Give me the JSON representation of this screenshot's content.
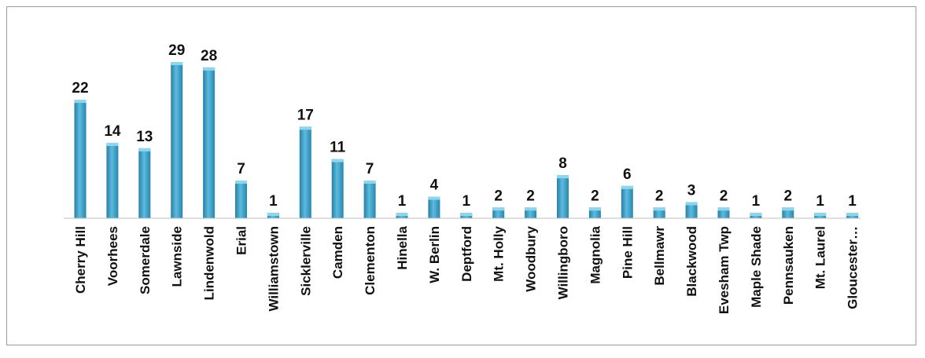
{
  "chart_data": {
    "type": "bar",
    "categories": [
      "Cherry Hill",
      "Voorhees",
      "Somerdale",
      "Lawnside",
      "Lindenwold",
      "Erial",
      "Williamstown",
      "Sicklerville",
      "Camden",
      "Clementon",
      "Hinella",
      "W. Berlin",
      "Deptford",
      "Mt. Holly",
      "Woodbury",
      "Willingboro",
      "Magnolia",
      "Pine Hill",
      "Bellmawr",
      "Blackwood",
      "Evesham Twp",
      "Maple Shade",
      "Pennsauken",
      "Mt. Laurel",
      "Gloucester…"
    ],
    "values": [
      22,
      14,
      13,
      29,
      28,
      7,
      1,
      17,
      11,
      7,
      1,
      4,
      1,
      2,
      2,
      8,
      2,
      6,
      2,
      3,
      2,
      1,
      2,
      1,
      1
    ],
    "ylim": [
      0,
      29
    ],
    "grid": false,
    "legend": "none",
    "colors": {
      "bar": "#3a9cc0",
      "bar_top": "#8fd6ec",
      "axis": "#bfbfbf"
    }
  }
}
